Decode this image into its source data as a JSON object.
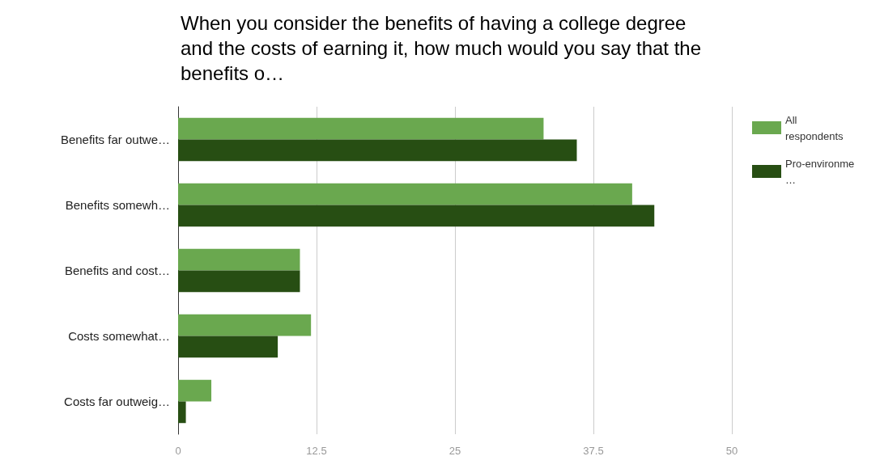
{
  "chart_data": {
    "type": "bar",
    "orientation": "horizontal",
    "title": "When you consider the benefits of having a college degree and the costs of earning it, how much would you say that the benefits o…",
    "categories": [
      "Benefits far outwe…",
      "Benefits somewh…",
      "Benefits and cost…",
      "Costs somewhat…",
      "Costs far outweig…"
    ],
    "series": [
      {
        "name": "All respondents",
        "color": "#6aa84f",
        "values": [
          33,
          41,
          11,
          12,
          3
        ]
      },
      {
        "name": "Pro-environme…",
        "color": "#274e13",
        "values": [
          36,
          43,
          11,
          9,
          0.7
        ]
      }
    ],
    "xlim": [
      0,
      50
    ],
    "xticks": [
      0,
      12.5,
      25,
      37.5,
      50
    ],
    "grid": "x",
    "legend": "top right"
  }
}
